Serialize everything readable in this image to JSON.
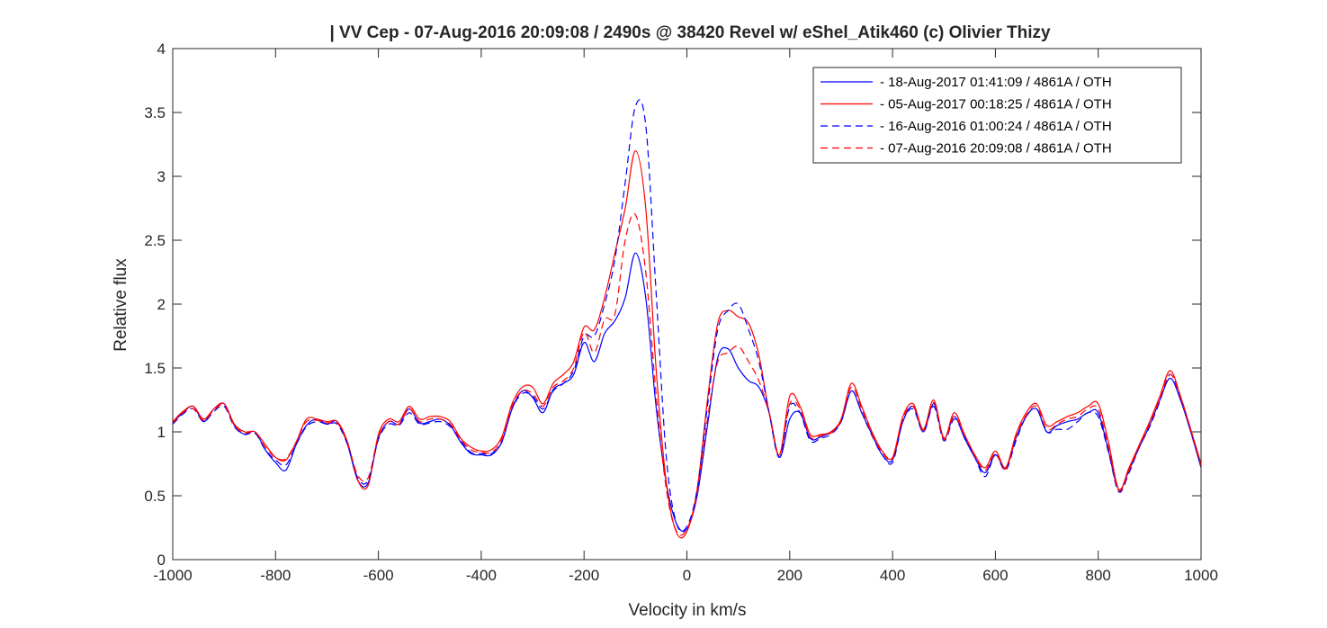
{
  "chart_data": {
    "type": "line",
    "title": "| VV Cep - 07-Aug-2016 20:09:08 / 2490s @ 38420 Revel w/ eShel_Atik460 (c) Olivier Thizy",
    "xlabel": "Velocity in km/s",
    "ylabel": "Relative flux",
    "xlim": [
      -1000,
      1000
    ],
    "ylim": [
      0,
      4
    ],
    "xticks": [
      -1000,
      -800,
      -600,
      -400,
      -200,
      0,
      200,
      400,
      600,
      800,
      1000
    ],
    "yticks": [
      0,
      0.5,
      1,
      1.5,
      2,
      2.5,
      3,
      3.5,
      4
    ],
    "xtick_labels": [
      "-1000",
      "-800",
      "-600",
      "-400",
      "-200",
      "0",
      "200",
      "400",
      "600",
      "800",
      "1000"
    ],
    "ytick_labels": [
      "0",
      "0.5",
      "1",
      "1.5",
      "2",
      "2.5",
      "3",
      "3.5",
      "4"
    ],
    "grid": false,
    "legend_position": "top-right",
    "x": [
      -1000,
      -980,
      -960,
      -940,
      -920,
      -900,
      -880,
      -860,
      -840,
      -820,
      -800,
      -780,
      -760,
      -740,
      -720,
      -700,
      -680,
      -660,
      -640,
      -620,
      -600,
      -580,
      -560,
      -540,
      -520,
      -500,
      -480,
      -460,
      -440,
      -420,
      -400,
      -380,
      -360,
      -340,
      -320,
      -300,
      -280,
      -260,
      -240,
      -220,
      -200,
      -180,
      -160,
      -140,
      -120,
      -100,
      -80,
      -60,
      -40,
      -20,
      0,
      20,
      40,
      60,
      80,
      100,
      120,
      140,
      160,
      180,
      200,
      220,
      240,
      260,
      280,
      300,
      320,
      340,
      360,
      380,
      400,
      420,
      440,
      460,
      480,
      500,
      520,
      540,
      560,
      580,
      600,
      620,
      640,
      660,
      680,
      700,
      720,
      740,
      760,
      780,
      800,
      820,
      840,
      860,
      880,
      900,
      920,
      940,
      960,
      980,
      1000
    ],
    "series": [
      {
        "name": "- 18-Aug-2017 01:41:09 / 4861A / OTH",
        "color": "#0000ff",
        "dash": "solid",
        "values": [
          1.07,
          1.15,
          1.2,
          1.08,
          1.18,
          1.22,
          1.05,
          0.98,
          1.0,
          0.86,
          0.76,
          0.7,
          0.9,
          1.05,
          1.1,
          1.06,
          1.08,
          0.9,
          0.62,
          0.6,
          0.95,
          1.08,
          1.06,
          1.18,
          1.07,
          1.08,
          1.1,
          1.05,
          0.92,
          0.83,
          0.82,
          0.82,
          0.92,
          1.18,
          1.32,
          1.27,
          1.15,
          1.33,
          1.38,
          1.45,
          1.7,
          1.55,
          1.77,
          1.87,
          2.05,
          2.4,
          2.05,
          1.2,
          0.6,
          0.28,
          0.24,
          0.5,
          1.05,
          1.58,
          1.65,
          1.5,
          1.4,
          1.35,
          1.15,
          0.8,
          1.1,
          1.15,
          0.95,
          0.96,
          1.0,
          1.08,
          1.32,
          1.15,
          0.98,
          0.82,
          0.78,
          1.08,
          1.2,
          1.0,
          1.22,
          0.95,
          1.12,
          0.95,
          0.8,
          0.68,
          0.82,
          0.72,
          0.95,
          1.12,
          1.18,
          1.0,
          1.05,
          1.08,
          1.1,
          1.15,
          1.15,
          0.85,
          0.55,
          0.7,
          0.88,
          1.05,
          1.25,
          1.42,
          1.25,
          1.0,
          0.72
        ]
      },
      {
        "name": "- 05-Aug-2017 00:18:25 / 4861A / OTH",
        "color": "#ff0000",
        "dash": "solid",
        "values": [
          1.08,
          1.16,
          1.2,
          1.1,
          1.18,
          1.22,
          1.06,
          1.0,
          1.0,
          0.9,
          0.8,
          0.78,
          0.92,
          1.1,
          1.1,
          1.08,
          1.08,
          0.92,
          0.62,
          0.58,
          0.98,
          1.1,
          1.08,
          1.2,
          1.1,
          1.12,
          1.12,
          1.08,
          0.95,
          0.88,
          0.85,
          0.86,
          0.96,
          1.22,
          1.35,
          1.35,
          1.22,
          1.38,
          1.45,
          1.55,
          1.82,
          1.8,
          2.05,
          2.4,
          2.75,
          3.2,
          2.75,
          1.5,
          0.6,
          0.21,
          0.22,
          0.55,
          1.25,
          1.85,
          1.95,
          1.9,
          1.85,
          1.6,
          1.15,
          0.82,
          1.28,
          1.2,
          0.98,
          0.98,
          1.0,
          1.1,
          1.38,
          1.2,
          1.0,
          0.85,
          0.8,
          1.12,
          1.22,
          1.02,
          1.25,
          0.95,
          1.15,
          0.98,
          0.82,
          0.72,
          0.85,
          0.72,
          0.98,
          1.15,
          1.22,
          1.05,
          1.08,
          1.12,
          1.15,
          1.2,
          1.22,
          0.92,
          0.55,
          0.72,
          0.9,
          1.08,
          1.28,
          1.48,
          1.28,
          1.02,
          0.75
        ]
      },
      {
        "name": "- 16-Aug-2016 01:00:24 / 4861A / OTH",
        "color": "#0000ff",
        "dash": "dashed",
        "values": [
          1.06,
          1.14,
          1.18,
          1.08,
          1.16,
          1.2,
          1.04,
          0.98,
          0.99,
          0.86,
          0.78,
          0.74,
          0.9,
          1.04,
          1.08,
          1.06,
          1.06,
          0.9,
          0.64,
          0.62,
          0.94,
          1.06,
          1.05,
          1.15,
          1.06,
          1.07,
          1.08,
          1.04,
          0.93,
          0.84,
          0.83,
          0.83,
          0.92,
          1.18,
          1.3,
          1.28,
          1.18,
          1.32,
          1.38,
          1.48,
          1.75,
          1.75,
          2.0,
          2.35,
          2.95,
          3.55,
          3.4,
          2.1,
          0.8,
          0.28,
          0.26,
          0.55,
          1.2,
          1.8,
          1.95,
          2.0,
          1.8,
          1.55,
          1.15,
          0.8,
          1.2,
          1.15,
          0.93,
          0.95,
          0.98,
          1.08,
          1.32,
          1.15,
          0.97,
          0.82,
          0.76,
          1.08,
          1.18,
          1.0,
          1.2,
          0.93,
          1.1,
          0.96,
          0.8,
          0.65,
          0.82,
          0.7,
          0.93,
          1.12,
          1.18,
          1.0,
          1.02,
          1.02,
          1.08,
          1.15,
          1.12,
          0.84,
          0.53,
          0.68,
          0.88,
          1.04,
          1.24,
          1.45,
          1.26,
          1.0,
          0.72
        ]
      },
      {
        "name": "- 07-Aug-2016 20:09:08 / 4861A / OTH",
        "color": "#ff0000",
        "dash": "dashed",
        "values": [
          1.07,
          1.15,
          1.18,
          1.09,
          1.17,
          1.21,
          1.05,
          0.99,
          1.0,
          0.88,
          0.8,
          0.79,
          0.92,
          1.08,
          1.09,
          1.07,
          1.07,
          0.91,
          0.66,
          0.64,
          0.96,
          1.08,
          1.06,
          1.18,
          1.08,
          1.1,
          1.1,
          1.06,
          0.94,
          0.86,
          0.84,
          0.84,
          0.94,
          1.2,
          1.32,
          1.3,
          1.2,
          1.35,
          1.4,
          1.5,
          1.78,
          1.62,
          1.88,
          1.92,
          2.5,
          2.7,
          2.25,
          1.3,
          0.55,
          0.22,
          0.24,
          0.52,
          1.1,
          1.55,
          1.62,
          1.67,
          1.55,
          1.4,
          1.15,
          0.82,
          1.22,
          1.18,
          0.96,
          0.97,
          0.99,
          1.09,
          1.35,
          1.18,
          0.98,
          0.84,
          0.79,
          1.1,
          1.2,
          1.01,
          1.23,
          0.94,
          1.12,
          0.97,
          0.81,
          0.7,
          0.83,
          0.71,
          0.96,
          1.13,
          1.2,
          1.02,
          1.06,
          1.1,
          1.12,
          1.18,
          1.18,
          0.88,
          0.54,
          0.7,
          0.89,
          1.06,
          1.26,
          1.45,
          1.27,
          1.01,
          0.73
        ]
      }
    ]
  }
}
